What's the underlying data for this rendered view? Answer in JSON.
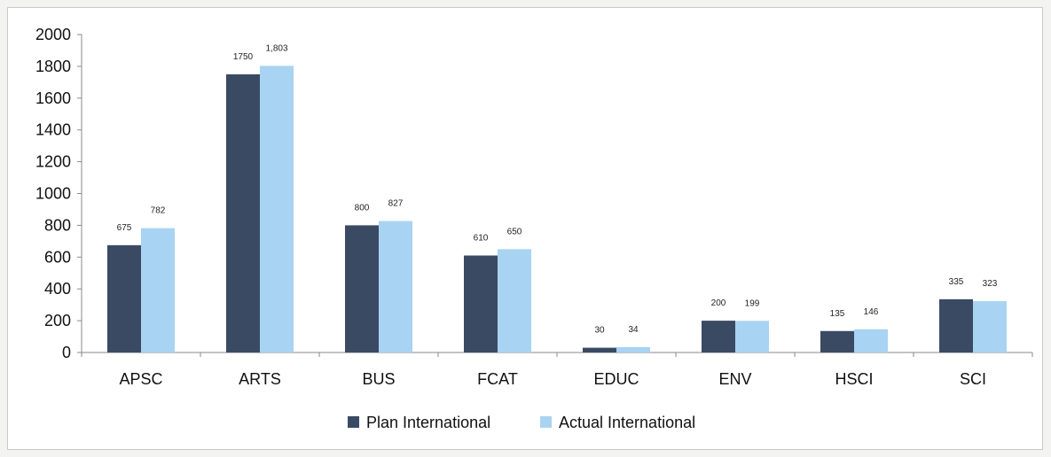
{
  "chart_data": {
    "type": "bar",
    "categories": [
      "APSC",
      "ARTS",
      "BUS",
      "FCAT",
      "EDUC",
      "ENV",
      "HSCI",
      "SCI"
    ],
    "series": [
      {
        "name": "Plan International",
        "values": [
          675,
          1750,
          800,
          610,
          30,
          200,
          135,
          335
        ],
        "labels": [
          "675",
          "1750",
          "800",
          "610",
          "30",
          "200",
          "135",
          "335"
        ],
        "color": "#3b4a63"
      },
      {
        "name": "Actual International",
        "values": [
          782,
          1803,
          827,
          650,
          34,
          199,
          146,
          323
        ],
        "labels": [
          "782",
          "1,803",
          "827",
          "650",
          "34",
          "199",
          "146",
          "323"
        ],
        "color": "#a9d3f2"
      }
    ],
    "yticks": [
      "0",
      "200",
      "400",
      "600",
      "800",
      "1000",
      "1200",
      "1400",
      "1600",
      "1800",
      "2000"
    ],
    "ylim": [
      0,
      2000
    ],
    "grid": false,
    "legend": "bottom"
  }
}
